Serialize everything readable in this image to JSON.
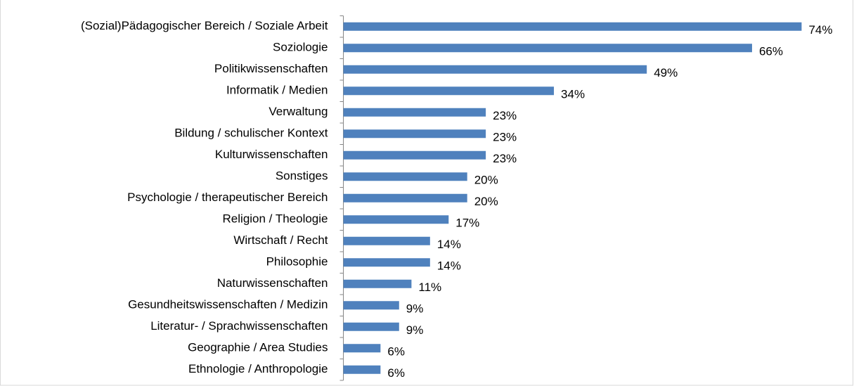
{
  "chart_data": {
    "type": "bar",
    "orientation": "horizontal",
    "color": "#4f81bd",
    "categories": [
      "(Sozial)Pädagogischer Bereich / Soziale Arbeit",
      "Soziologie",
      "Politikwissenschaften",
      "Informatik / Medien",
      "Verwaltung",
      "Bildung / schulischer Kontext",
      "Kulturwissenschaften",
      "Sonstiges",
      "Psychologie / therapeutischer Bereich",
      "Religion / Theologie",
      "Wirtschaft / Recht",
      "Philosophie",
      "Naturwissenschaften",
      "Gesundheitswissenschaften / Medizin",
      "Literatur- / Sprachwissenschaften",
      "Geographie / Area Studies",
      "Ethnologie / Anthropologie"
    ],
    "values": [
      74,
      66,
      49,
      34,
      23,
      23,
      23,
      20,
      20,
      17,
      14,
      14,
      11,
      9,
      9,
      6,
      6
    ],
    "value_labels": [
      "74%",
      "66%",
      "49%",
      "34%",
      "23%",
      "23%",
      "23%",
      "20%",
      "20%",
      "17%",
      "14%",
      "14%",
      "11%",
      "9%",
      "9%",
      "6%",
      "6%"
    ]
  }
}
